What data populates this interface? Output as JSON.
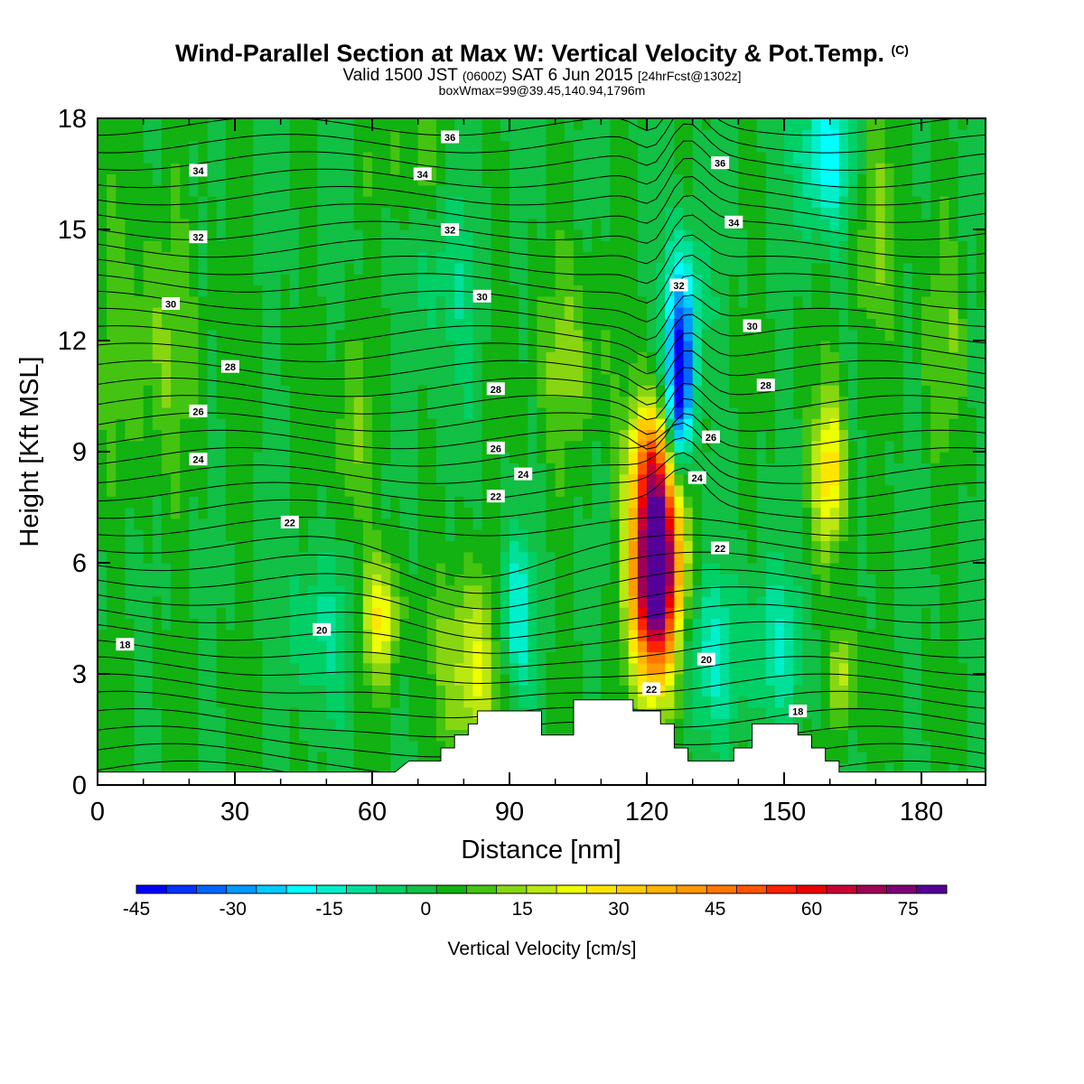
{
  "header": {
    "title": "Wind-Parallel Section at Max W: Vertical Velocity & Pot.Temp.",
    "copyright": "(C)",
    "valid_prefix": "Valid 1500 JST",
    "valid_utc": "(0600Z)",
    "valid_date": "SAT 6 Jun 2015",
    "forecast": "[24hrFcst@1302z]",
    "box_info": "boxWmax=99@39.45,140.94,1796m"
  },
  "colors": {
    "background_field": "#11b211",
    "terrain": "#ffffff",
    "contour": "#000000",
    "palette": [
      "#0000ff",
      "#0033ff",
      "#0066ff",
      "#0099ff",
      "#00ccff",
      "#00ffff",
      "#00f0cc",
      "#00e099",
      "#00d066",
      "#11c044",
      "#11b211",
      "#44c411",
      "#88d611",
      "#bbe811",
      "#eeff00",
      "#ffe600",
      "#ffcc00",
      "#ffb300",
      "#ff9900",
      "#ff7700",
      "#ff5500",
      "#ff2200",
      "#ee0000",
      "#cc0033",
      "#a00055",
      "#800077",
      "#550099"
    ]
  },
  "chart_data": {
    "type": "heatmap",
    "xlabel": "Distance [nm]",
    "ylabel": "Height [Kft MSL]",
    "xlim": [
      0,
      194
    ],
    "ylim": [
      0,
      18
    ],
    "xticks": [
      0,
      30,
      60,
      90,
      120,
      150,
      180
    ],
    "yticks": [
      0,
      3,
      6,
      9,
      12,
      15,
      18
    ],
    "colorbar": {
      "label": "Vertical Velocity [cm/s]",
      "min": -45,
      "max": 81,
      "step": 4.5,
      "ticks": [
        -45,
        -30,
        -15,
        0,
        15,
        30,
        45,
        60,
        75
      ]
    },
    "w_features": [
      {
        "x": 62,
        "y": 4.5,
        "sx": 3,
        "sy": 1.2,
        "w": 22
      },
      {
        "x": 82,
        "y": 3.2,
        "sx": 5,
        "sy": 1.8,
        "w": 20
      },
      {
        "x": 55,
        "y": 9.5,
        "sx": 3,
        "sy": 1.8,
        "w": 10
      },
      {
        "x": 103,
        "y": 11.5,
        "sx": 6,
        "sy": 1.8,
        "w": 10
      },
      {
        "x": 12,
        "y": 12.0,
        "sx": 8,
        "sy": 2.5,
        "w": 9
      },
      {
        "x": 122,
        "y": 6.0,
        "sx": 3.5,
        "sy": 2.2,
        "w": 99
      },
      {
        "x": 120,
        "y": 9.0,
        "sx": 3,
        "sy": 1.0,
        "w": 15
      },
      {
        "x": 127,
        "y": 10.5,
        "sx": 2,
        "sy": 1.6,
        "w": -45
      },
      {
        "x": 128,
        "y": 13.0,
        "sx": 3,
        "sy": 1.5,
        "w": -20
      },
      {
        "x": 160,
        "y": 8.5,
        "sx": 2.5,
        "sy": 1.6,
        "w": 26
      },
      {
        "x": 163,
        "y": 3.0,
        "sx": 2,
        "sy": 1.0,
        "w": 18
      },
      {
        "x": 91,
        "y": 4.5,
        "sx": 3,
        "sy": 1.5,
        "w": -20
      },
      {
        "x": 159,
        "y": 17.0,
        "sx": 4,
        "sy": 1.5,
        "w": -22
      },
      {
        "x": 133,
        "y": 3.5,
        "sx": 5,
        "sy": 1.5,
        "w": -14
      },
      {
        "x": 148,
        "y": 3.8,
        "sx": 5,
        "sy": 1.5,
        "w": -12
      },
      {
        "x": 48,
        "y": 4.2,
        "sx": 5,
        "sy": 1.5,
        "w": -10
      },
      {
        "x": 76,
        "y": 14.0,
        "sx": 5,
        "sy": 2.5,
        "w": -8
      },
      {
        "x": 170,
        "y": 15.0,
        "sx": 4,
        "sy": 2,
        "w": 9
      },
      {
        "x": 70,
        "y": 17.0,
        "sx": 6,
        "sy": 1.2,
        "w": 8
      },
      {
        "x": 185,
        "y": 12.0,
        "sx": 4,
        "sy": 2,
        "w": 8
      }
    ],
    "terrain": [
      [
        0,
        0.35
      ],
      [
        65,
        0.35
      ],
      [
        68,
        0.65
      ],
      [
        75,
        0.65
      ],
      [
        75,
        1.0
      ],
      [
        78,
        1.0
      ],
      [
        78,
        1.35
      ],
      [
        81,
        1.35
      ],
      [
        81,
        1.65
      ],
      [
        83,
        1.65
      ],
      [
        83,
        2.0
      ],
      [
        97,
        2.0
      ],
      [
        97,
        1.35
      ],
      [
        104,
        1.35
      ],
      [
        104,
        2.3
      ],
      [
        117,
        2.3
      ],
      [
        117,
        2.0
      ],
      [
        123,
        2.0
      ],
      [
        123,
        1.65
      ],
      [
        126,
        1.65
      ],
      [
        126,
        1.0
      ],
      [
        129,
        1.0
      ],
      [
        129,
        0.65
      ],
      [
        139,
        0.65
      ],
      [
        139,
        1.0
      ],
      [
        143,
        1.0
      ],
      [
        143,
        1.65
      ],
      [
        153,
        1.65
      ],
      [
        153,
        1.35
      ],
      [
        156,
        1.35
      ],
      [
        156,
        1.0
      ],
      [
        159,
        1.0
      ],
      [
        159,
        0.65
      ],
      [
        162,
        0.65
      ],
      [
        162,
        0.35
      ],
      [
        194,
        0.35
      ]
    ],
    "theta_labels": [
      {
        "text": "36",
        "x": 77,
        "y": 17.5
      },
      {
        "text": "34",
        "x": 22,
        "y": 16.6
      },
      {
        "text": "34",
        "x": 71,
        "y": 16.5
      },
      {
        "text": "36",
        "x": 136,
        "y": 16.8
      },
      {
        "text": "32",
        "x": 22,
        "y": 14.8
      },
      {
        "text": "32",
        "x": 77,
        "y": 15.0
      },
      {
        "text": "34",
        "x": 139,
        "y": 15.2
      },
      {
        "text": "30",
        "x": 16,
        "y": 13.0
      },
      {
        "text": "32",
        "x": 127,
        "y": 13.5
      },
      {
        "text": "30",
        "x": 84,
        "y": 13.2
      },
      {
        "text": "30",
        "x": 143,
        "y": 12.4
      },
      {
        "text": "28",
        "x": 29,
        "y": 11.3
      },
      {
        "text": "28",
        "x": 87,
        "y": 10.7
      },
      {
        "text": "28",
        "x": 146,
        "y": 10.8
      },
      {
        "text": "26",
        "x": 22,
        "y": 10.1
      },
      {
        "text": "26",
        "x": 87,
        "y": 9.1
      },
      {
        "text": "26",
        "x": 134,
        "y": 9.4
      },
      {
        "text": "24",
        "x": 22,
        "y": 8.8
      },
      {
        "text": "24",
        "x": 93,
        "y": 8.4
      },
      {
        "text": "24",
        "x": 131,
        "y": 8.3
      },
      {
        "text": "22",
        "x": 87,
        "y": 7.8
      },
      {
        "text": "22",
        "x": 42,
        "y": 7.1
      },
      {
        "text": "22",
        "x": 136,
        "y": 6.4
      },
      {
        "text": "20",
        "x": 49,
        "y": 4.2
      },
      {
        "text": "18",
        "x": 6,
        "y": 3.8
      },
      {
        "text": "20",
        "x": 133,
        "y": 3.4
      },
      {
        "text": "22",
        "x": 121,
        "y": 2.6
      },
      {
        "text": "18",
        "x": 153,
        "y": 2.0
      }
    ]
  }
}
